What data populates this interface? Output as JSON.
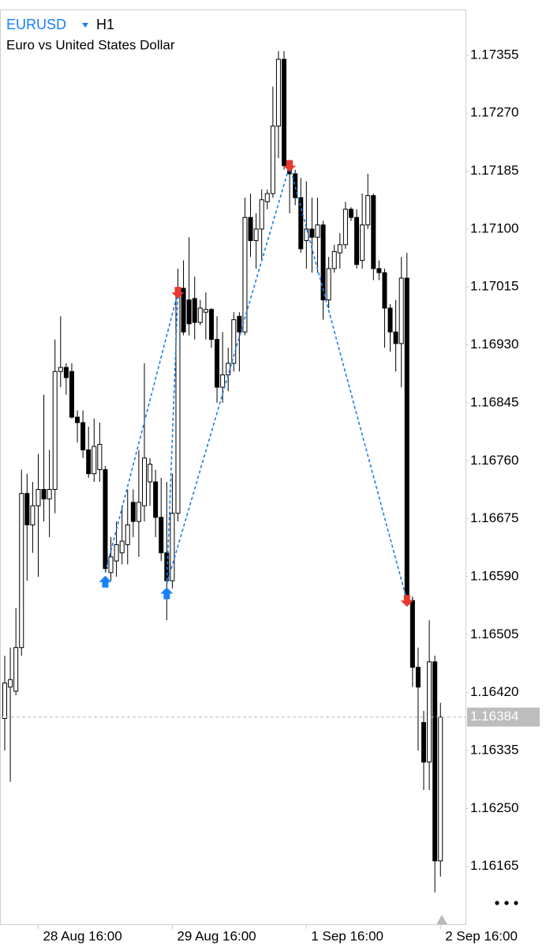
{
  "chart_data": {
    "type": "candlestick",
    "title": "EURUSD",
    "timeframe": "H1",
    "subtitle": "Euro vs United States Dollar",
    "color": "#000000",
    "categories": [
      null,
      null,
      null,
      null,
      null,
      null,
      "28 Aug 16:00",
      null,
      null,
      null,
      null,
      null,
      null,
      null,
      null,
      null,
      null,
      null,
      null,
      null,
      null,
      null,
      null,
      null,
      null,
      null,
      null,
      null,
      null,
      null,
      "29 Aug 16:00",
      null,
      null,
      null,
      null,
      null,
      null,
      null,
      null,
      null,
      null,
      null,
      null,
      null,
      null,
      null,
      null,
      null,
      null,
      null,
      null,
      null,
      null,
      null,
      "1 Sep 16:00",
      null,
      null,
      null,
      null,
      null,
      null,
      null,
      null,
      null,
      null,
      null,
      null,
      null,
      null,
      null,
      null,
      null,
      null,
      null,
      null,
      null,
      null,
      null,
      "2 Sep 16:00"
    ],
    "open": [
      1.16382,
      1.16428,
      1.16422,
      1.16486,
      1.16712,
      1.16666,
      1.16694,
      1.16718,
      1.16704,
      1.16718,
      1.16891,
      1.16897,
      1.16891,
      1.16824,
      1.16816,
      1.16776,
      1.16741,
      1.16747,
      1.16747,
      1.16596,
      1.16613,
      1.16625,
      1.16637,
      1.16699,
      1.16671,
      1.16694,
      1.16729,
      1.16729,
      1.16677,
      1.16625,
      1.16584,
      1.16683,
      1.17013,
      1.16996,
      1.16998,
      1.16963,
      1.16978,
      1.16982,
      1.16938,
      1.16868,
      1.16886,
      1.16903,
      1.16972,
      1.16949,
      1.17117,
      1.17083,
      1.171,
      1.1714,
      1.17152,
      1.17251,
      1.17349,
      1.17193,
      1.17181,
      1.17146,
      1.17083,
      1.171,
      1.17088,
      1.17106,
      1.16996,
      1.17042,
      1.17065,
      1.17077,
      1.17129,
      1.17117,
      1.17054,
      1.17106,
      1.17149,
      1.17042,
      1.17036,
      1.16984,
      1.16949,
      1.16932,
      1.17028,
      1.16555,
      1.16457,
      1.16376,
      1.16318,
      1.16465,
      1.16173
    ],
    "high": [
      1.16474,
      1.16486,
      1.16544,
      1.16747,
      1.16741,
      1.16729,
      1.1677,
      1.16857,
      1.16776,
      1.16938,
      1.16972,
      1.16903,
      1.16903,
      1.16834,
      1.16834,
      1.1681,
      1.16822,
      1.16816,
      1.16752,
      1.16648,
      1.16671,
      1.16694,
      1.16718,
      1.16718,
      1.16776,
      1.16903,
      1.16764,
      1.16747,
      1.16735,
      1.16729,
      1.16741,
      1.17042,
      1.17054,
      1.17088,
      1.1703,
      1.16996,
      1.17007,
      1.16984,
      1.16972,
      1.16949,
      1.16926,
      1.16978,
      1.16978,
      1.17146,
      1.17152,
      1.17123,
      1.17158,
      1.17158,
      1.17309,
      1.17361,
      1.17361,
      1.17198,
      1.17187,
      1.17175,
      1.1717,
      1.17146,
      1.17146,
      1.17112,
      1.17059,
      1.17077,
      1.17094,
      1.1714,
      1.17132,
      1.17129,
      1.17152,
      1.17181,
      1.17152,
      1.17054,
      1.17042,
      1.1699,
      1.16996,
      1.17059,
      1.17065,
      1.16561,
      1.16486,
      1.16393,
      1.16526,
      1.16474,
      1.16405
    ],
    "low": [
      1.16335,
      1.16289,
      1.16416,
      1.16474,
      1.16584,
      1.16625,
      1.1659,
      1.16671,
      1.16648,
      1.16683,
      1.16868,
      1.16857,
      1.16822,
      1.16787,
      1.16764,
      1.16735,
      1.16729,
      1.16729,
      1.16596,
      1.16584,
      1.1659,
      1.16608,
      1.16608,
      1.16648,
      1.16619,
      1.16671,
      1.16694,
      1.16648,
      1.16613,
      1.16526,
      1.16573,
      1.16671,
      1.16944,
      1.16944,
      1.16938,
      1.16959,
      1.16938,
      1.16926,
      1.16845,
      1.16845,
      1.16862,
      1.16891,
      1.16891,
      1.16944,
      1.17059,
      1.17042,
      1.17054,
      1.17129,
      1.17146,
      1.17204,
      1.17187,
      1.17123,
      1.17135,
      1.17065,
      1.17042,
      1.17036,
      1.17036,
      1.16967,
      1.16984,
      1.17036,
      1.17042,
      1.17071,
      1.17112,
      1.17042,
      1.17042,
      1.171,
      1.17025,
      1.17025,
      1.16926,
      1.1692,
      1.16891,
      1.16868,
      1.1655,
      1.16428,
      1.16335,
      1.16277,
      1.16277,
      1.16127,
      1.1615
    ],
    "close": [
      1.16434,
      1.16439,
      1.16486,
      1.16712,
      1.16666,
      1.16694,
      1.16718,
      1.16704,
      1.16718,
      1.16891,
      1.16897,
      1.16882,
      1.16824,
      1.16816,
      1.16776,
      1.16741,
      1.16781,
      1.16784,
      1.16602,
      1.16619,
      1.16637,
      1.16642,
      1.16666,
      1.16671,
      1.16699,
      1.16764,
      1.16755,
      1.16677,
      1.16625,
      1.16584,
      1.16683,
      1.17007,
      1.16949,
      1.16961,
      1.16963,
      1.16984,
      1.16982,
      1.16938,
      1.16868,
      1.16886,
      1.16903,
      1.16967,
      1.16949,
      1.17117,
      1.17083,
      1.171,
      1.17143,
      1.17152,
      1.17251,
      1.17349,
      1.17193,
      1.17181,
      1.17146,
      1.17071,
      1.171,
      1.17088,
      1.17106,
      1.16996,
      1.17042,
      1.17067,
      1.17077,
      1.17129,
      1.17117,
      1.17048,
      1.17106,
      1.17149,
      1.17042,
      1.17036,
      1.16984,
      1.16949,
      1.16932,
      1.17028,
      1.16555,
      1.16457,
      1.16428,
      1.16318,
      1.16465,
      1.16173,
      1.16384
    ],
    "zigzag": {
      "color": "#1a7ff0",
      "x": [
        18,
        31,
        29,
        51,
        72
      ],
      "values": [
        1.16596,
        1.17007,
        1.16579,
        1.17193,
        1.16555
      ]
    },
    "buy_arrows": {
      "color": "#1a82f7",
      "x": [
        18,
        29
      ],
      "values": [
        1.16596,
        1.16579
      ]
    },
    "sell_arrows": {
      "color": "#e8392e",
      "x": [
        31,
        51,
        72
      ],
      "values": [
        1.17007,
        1.17193,
        1.16555
      ]
    },
    "last_price": 1.16384,
    "ylim": [
      1.1608,
      1.17436
    ],
    "yticks": [
      1.17355,
      {
        "value": 1.1727,
        "label": "1.17270"
      },
      1.17185,
      {
        "value": 1.171,
        "label": "1.17100"
      },
      1.17015,
      {
        "value": 1.1693,
        "label": "1.16930"
      },
      1.16845,
      {
        "value": 1.1676,
        "label": "1.16760"
      },
      1.16675,
      {
        "value": 1.1659,
        "label": "1.16590"
      },
      1.16505,
      {
        "value": 1.1642,
        "label": "1.16420"
      },
      1.16335,
      {
        "value": 1.1625,
        "label": "1.16250"
      },
      1.16165
    ]
  }
}
